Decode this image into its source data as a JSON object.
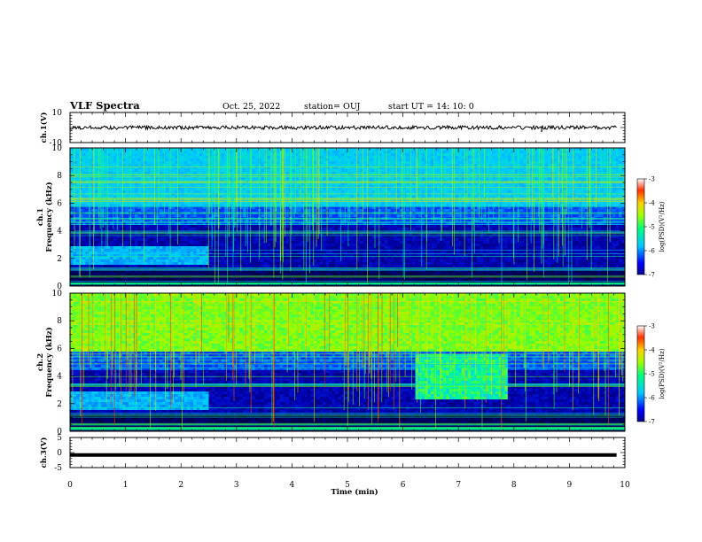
{
  "header": {
    "title": "VLF Spectra",
    "date": "Oct. 25, 2022",
    "station": "station= OUJ",
    "start": "start  UT  =   14: 10: 0"
  },
  "colorbar_label": "log(PSD)(V²/Hz)",
  "chart_data": [
    {
      "type": "line",
      "panel": "ch1-waveform",
      "ylabel": "ch.1(V)",
      "ylim": [
        -10,
        10
      ],
      "yticks": [
        "10",
        "-10"
      ],
      "xlim": [
        0,
        10
      ],
      "series": [
        {
          "values_note": "",
          "level": 0,
          "amplitude": 1.2
        }
      ],
      "spikes": [
        {
          "x": 8.5,
          "y": -3
        }
      ]
    },
    {
      "type": "heatmap",
      "panel": "ch1-spectrogram",
      "ylabel": "ch.1\nFrequency (kHz)",
      "ylabel_line1": "ch.1",
      "ylabel_line2": "Frequency (kHz)",
      "ylim": [
        0,
        10
      ],
      "yticks": [
        "0",
        "2",
        "4",
        "6",
        "8",
        "10"
      ],
      "xlim": [
        0,
        10
      ],
      "colorbar": {
        "min": -7,
        "max": -3,
        "ticks": [
          "-3",
          "-4",
          "-5",
          "-6",
          "-7"
        ]
      }
    },
    {
      "type": "heatmap",
      "panel": "ch2-spectrogram",
      "ylabel_line1": "ch.2",
      "ylabel_line2": "Frequency (kHz)",
      "ylim": [
        0,
        10
      ],
      "yticks": [
        "0",
        "2",
        "4",
        "6",
        "8",
        "10"
      ],
      "xlim": [
        0,
        10
      ],
      "colorbar": {
        "min": -7,
        "max": -3,
        "ticks": [
          "-3",
          "-4",
          "-5",
          "-6",
          "-7"
        ]
      }
    },
    {
      "type": "line",
      "panel": "ch3-waveform",
      "ylabel": "ch.3(V)",
      "ylim": [
        -5,
        5
      ],
      "yticks": [
        "5",
        "0",
        "-5"
      ],
      "xlim": [
        0,
        10
      ],
      "series": [
        {
          "level": -0.8
        }
      ]
    }
  ],
  "xaxis": {
    "label": "Time (min)",
    "ticks": [
      "0",
      "1",
      "2",
      "3",
      "4",
      "5",
      "6",
      "7",
      "8",
      "9",
      "10"
    ]
  }
}
